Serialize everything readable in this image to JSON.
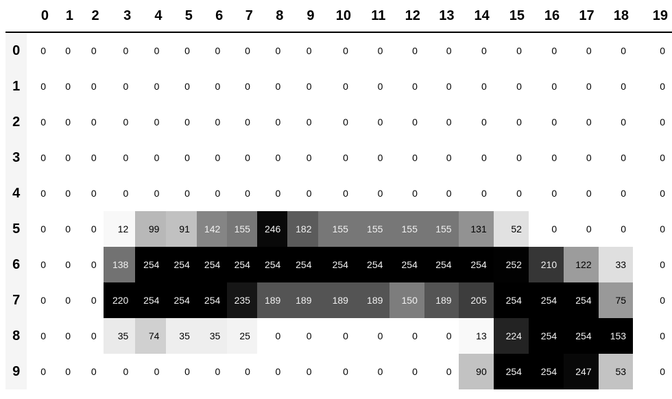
{
  "chart_data": {
    "type": "table",
    "colormap": "Greys",
    "gradient_axis": "column",
    "columns": [
      "0",
      "1",
      "2",
      "3",
      "4",
      "5",
      "6",
      "7",
      "8",
      "9",
      "10",
      "11",
      "12",
      "13",
      "14",
      "15",
      "16",
      "17",
      "18",
      "19"
    ],
    "index": [
      "0",
      "1",
      "2",
      "3",
      "4",
      "5",
      "6",
      "7",
      "8",
      "9"
    ],
    "rows": [
      [
        0,
        0,
        0,
        0,
        0,
        0,
        0,
        0,
        0,
        0,
        0,
        0,
        0,
        0,
        0,
        0,
        0,
        0,
        0,
        0
      ],
      [
        0,
        0,
        0,
        0,
        0,
        0,
        0,
        0,
        0,
        0,
        0,
        0,
        0,
        0,
        0,
        0,
        0,
        0,
        0,
        0
      ],
      [
        0,
        0,
        0,
        0,
        0,
        0,
        0,
        0,
        0,
        0,
        0,
        0,
        0,
        0,
        0,
        0,
        0,
        0,
        0,
        0
      ],
      [
        0,
        0,
        0,
        0,
        0,
        0,
        0,
        0,
        0,
        0,
        0,
        0,
        0,
        0,
        0,
        0,
        0,
        0,
        0,
        0
      ],
      [
        0,
        0,
        0,
        0,
        0,
        0,
        0,
        0,
        0,
        0,
        0,
        0,
        0,
        0,
        0,
        0,
        0,
        0,
        0,
        0
      ],
      [
        0,
        0,
        0,
        12,
        99,
        91,
        142,
        155,
        246,
        182,
        155,
        155,
        155,
        155,
        131,
        52,
        0,
        0,
        0,
        0
      ],
      [
        0,
        0,
        0,
        138,
        254,
        254,
        254,
        254,
        254,
        254,
        254,
        254,
        254,
        254,
        254,
        252,
        210,
        122,
        33,
        0
      ],
      [
        0,
        0,
        0,
        220,
        254,
        254,
        254,
        235,
        189,
        189,
        189,
        189,
        150,
        189,
        205,
        254,
        254,
        254,
        75,
        0
      ],
      [
        0,
        0,
        0,
        35,
        74,
        35,
        35,
        25,
        0,
        0,
        0,
        0,
        0,
        0,
        13,
        224,
        254,
        254,
        153,
        0
      ],
      [
        0,
        0,
        0,
        0,
        0,
        0,
        0,
        0,
        0,
        0,
        0,
        0,
        0,
        0,
        90,
        254,
        254,
        247,
        53,
        0
      ]
    ]
  }
}
